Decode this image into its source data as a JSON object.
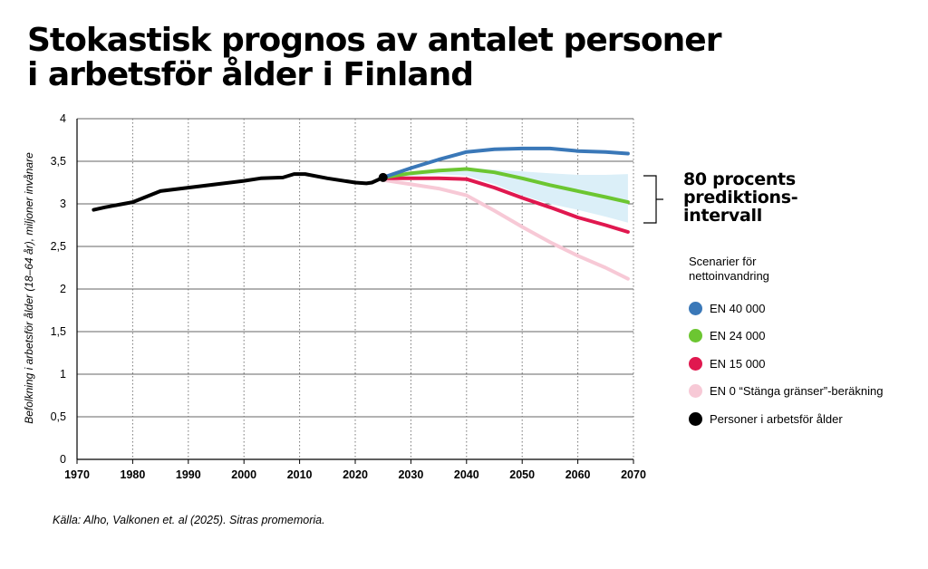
{
  "title_line1": "Stokastisk prognos av antalet personer",
  "title_line2": "i arbetsför ålder i Finland",
  "prediction_interval_label": [
    "80 procents",
    "prediktions-",
    "intervall"
  ],
  "legend": {
    "title": "Scenarier för nettoinvandring",
    "items": [
      {
        "label": "EN 40 000",
        "color": "#3a78b8"
      },
      {
        "label": "EN 24 000",
        "color": "#6cc631"
      },
      {
        "label": "EN 15 000",
        "color": "#e0184f"
      },
      {
        "label": "EN 0 “Stänga gränser”-beräkning",
        "color": "#f7c9d6"
      },
      {
        "label": "Personer i arbetsför ålder",
        "color": "#000000"
      }
    ]
  },
  "source": "Källa: Alho, Valkonen et. al (2025). Sitras promemoria.",
  "chart_data": {
    "type": "line",
    "ylabel": "Befolkning i arbetsför ålder (18–64 år), miljoner invånare",
    "xlabel": "",
    "xlim": [
      1970,
      2070
    ],
    "ylim": [
      0,
      4
    ],
    "x_ticks": [
      1970,
      1980,
      1990,
      2000,
      2010,
      2020,
      2030,
      2040,
      2050,
      2060,
      2070
    ],
    "y_ticks": [
      0,
      0.5,
      1,
      1.5,
      2,
      2.5,
      3,
      3.5,
      4
    ],
    "y_tick_labels": [
      "0",
      "0,5",
      "1",
      "1,5",
      "2",
      "2,5",
      "3",
      "3,5",
      "4"
    ],
    "grid": "vertical dotted, horizontal solid",
    "series": [
      {
        "name": "Personer i arbetsför ålder",
        "color": "#000000",
        "x": [
          1973,
          1975,
          1980,
          1985,
          1990,
          1995,
          2000,
          2003,
          2007,
          2009,
          2011,
          2015,
          2020,
          2022,
          2023,
          2025
        ],
        "y": [
          2.93,
          2.96,
          3.02,
          3.15,
          3.19,
          3.23,
          3.27,
          3.3,
          3.31,
          3.35,
          3.35,
          3.3,
          3.25,
          3.24,
          3.25,
          3.31
        ]
      },
      {
        "name": "EN 40 000",
        "color": "#3a78b8",
        "x": [
          2025,
          2030,
          2035,
          2040,
          2045,
          2050,
          2055,
          2060,
          2065,
          2069
        ],
        "y": [
          3.31,
          3.42,
          3.52,
          3.61,
          3.64,
          3.65,
          3.65,
          3.62,
          3.61,
          3.59
        ]
      },
      {
        "name": "EN 24 000",
        "color": "#6cc631",
        "x": [
          2025,
          2030,
          2035,
          2040,
          2045,
          2050,
          2055,
          2060,
          2065,
          2069
        ],
        "y": [
          3.31,
          3.36,
          3.39,
          3.41,
          3.37,
          3.3,
          3.22,
          3.15,
          3.08,
          3.02
        ]
      },
      {
        "name": "EN 15 000",
        "color": "#e0184f",
        "x": [
          2025,
          2030,
          2035,
          2040,
          2045,
          2050,
          2055,
          2060,
          2065,
          2069
        ],
        "y": [
          3.3,
          3.3,
          3.3,
          3.29,
          3.19,
          3.07,
          2.96,
          2.84,
          2.75,
          2.67
        ]
      },
      {
        "name": "EN 0 “Stänga gränser”-beräkning",
        "color": "#f7c9d6",
        "x": [
          2025,
          2030,
          2035,
          2040,
          2045,
          2050,
          2055,
          2060,
          2065,
          2069
        ],
        "y": [
          3.28,
          3.23,
          3.18,
          3.1,
          2.92,
          2.73,
          2.55,
          2.39,
          2.25,
          2.12
        ]
      }
    ],
    "interval": {
      "name": "80 procents prediktionsintervall",
      "color": "#dbeff8",
      "x": [
        2025,
        2030,
        2035,
        2040,
        2045,
        2050,
        2055,
        2060,
        2065,
        2069
      ],
      "upper": [
        3.32,
        3.36,
        3.4,
        3.43,
        3.4,
        3.38,
        3.36,
        3.34,
        3.34,
        3.35
      ],
      "lower": [
        3.3,
        3.33,
        3.35,
        3.33,
        3.23,
        3.1,
        3.0,
        2.93,
        2.85,
        2.78
      ]
    }
  }
}
